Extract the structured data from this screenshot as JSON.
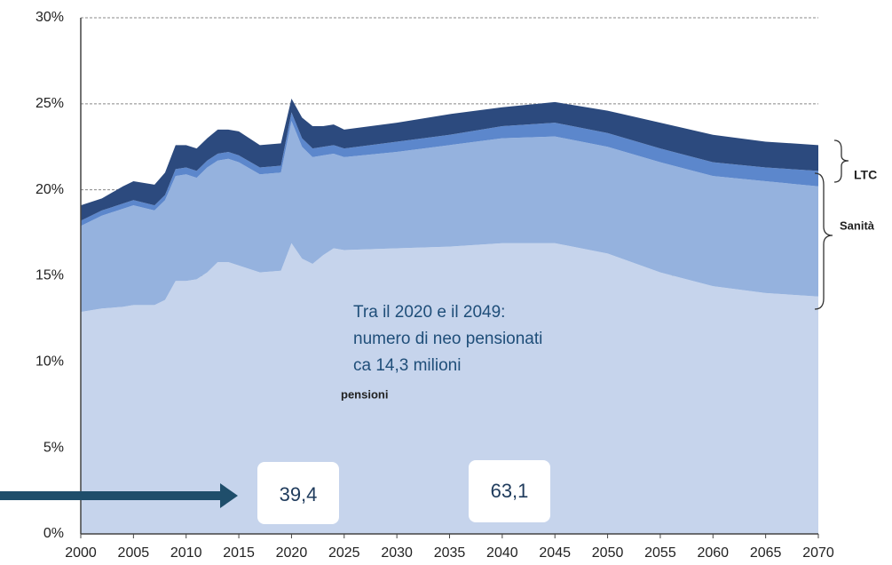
{
  "chart_data": {
    "type": "stacked_area",
    "x": [
      2000,
      2002,
      2004,
      2005,
      2007,
      2008,
      2009,
      2010,
      2011,
      2012,
      2013,
      2014,
      2015,
      2017,
      2019,
      2020,
      2021,
      2022,
      2023,
      2024,
      2025,
      2030,
      2035,
      2040,
      2045,
      2050,
      2055,
      2060,
      2065,
      2070
    ],
    "series": [
      {
        "color": "#c6d4ec",
        "values": [
          12.9,
          13.1,
          13.2,
          13.3,
          13.3,
          13.6,
          14.7,
          14.7,
          14.8,
          15.2,
          15.8,
          15.8,
          15.6,
          15.2,
          15.3,
          16.9,
          16.0,
          15.7,
          16.2,
          16.6,
          16.5,
          16.6,
          16.7,
          16.9,
          16.9,
          16.3,
          15.2,
          14.4,
          14.0,
          13.8
        ]
      },
      {
        "color": "#95b2de",
        "values": [
          5.0,
          5.4,
          5.7,
          5.8,
          5.5,
          5.8,
          6.1,
          6.2,
          5.9,
          6.1,
          5.9,
          6.0,
          6.0,
          5.7,
          5.7,
          7.1,
          6.5,
          6.2,
          5.8,
          5.5,
          5.4,
          5.6,
          5.9,
          6.1,
          6.2,
          6.2,
          6.4,
          6.4,
          6.5,
          6.4
        ]
      },
      {
        "color": "#5c87cc",
        "values": [
          0.3,
          0.3,
          0.3,
          0.3,
          0.3,
          0.3,
          0.4,
          0.4,
          0.4,
          0.4,
          0.4,
          0.4,
          0.4,
          0.4,
          0.4,
          0.5,
          0.5,
          0.5,
          0.5,
          0.5,
          0.5,
          0.6,
          0.6,
          0.7,
          0.8,
          0.8,
          0.8,
          0.8,
          0.8,
          0.9
        ]
      },
      {
        "color": "#2c4a7e",
        "values": [
          0.9,
          0.7,
          1.0,
          1.1,
          1.2,
          1.3,
          1.4,
          1.3,
          1.3,
          1.3,
          1.4,
          1.3,
          1.4,
          1.3,
          1.3,
          0.8,
          1.2,
          1.3,
          1.2,
          1.2,
          1.1,
          1.1,
          1.2,
          1.1,
          1.2,
          1.3,
          1.5,
          1.6,
          1.5,
          1.5
        ]
      }
    ],
    "xlim": [
      2000,
      2070
    ],
    "xticks": [
      2000,
      2005,
      2010,
      2015,
      2020,
      2025,
      2030,
      2035,
      2040,
      2045,
      2050,
      2055,
      2060,
      2065,
      2070
    ],
    "ylim": [
      0,
      30
    ],
    "yticks": [
      {
        "value": 0,
        "label": "0%"
      },
      {
        "value": 5,
        "label": "5%"
      },
      {
        "value": 10,
        "label": "10%"
      },
      {
        "value": 15,
        "label": "15%"
      },
      {
        "value": 20,
        "label": "20%"
      },
      {
        "value": 25,
        "label": "25%"
      },
      {
        "value": 30,
        "label": "30%"
      }
    ],
    "grid": true,
    "annotations": {
      "ltc": "LTC",
      "sanita": "Sanità",
      "pensioni": "pensioni",
      "note": [
        "Tra il 2020 e il 2049:",
        "numero di neo pensionati",
        "ca 14,3 milioni"
      ],
      "box_left": "39,4",
      "box_right": "63,1"
    }
  }
}
